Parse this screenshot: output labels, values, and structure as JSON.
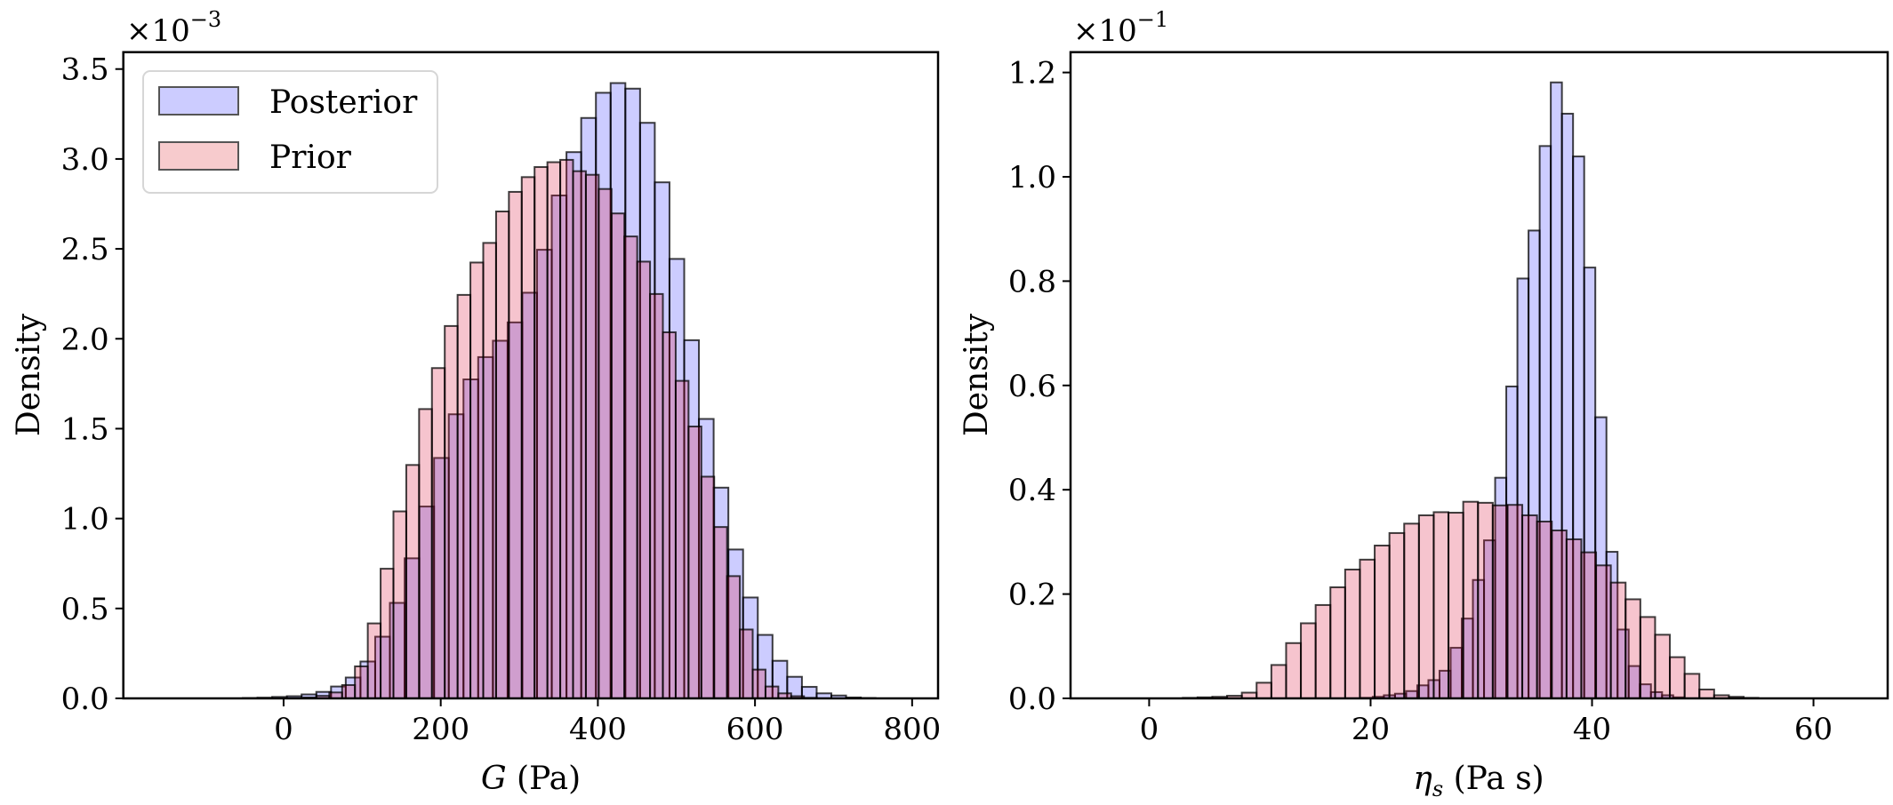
{
  "chart_data": [
    {
      "type": "bar",
      "subtype": "histogram",
      "xlabel": "G (Pa)",
      "xlabel_italic": "G",
      "xlabel_rest": " (Pa)",
      "ylabel": "Density",
      "y_offset_text": "×10",
      "y_offset_exp": "−3",
      "xlim": [
        -204,
        833
      ],
      "ylim": [
        0,
        3.594
      ],
      "y_scale_factor": 0.001,
      "xticks": [
        "0",
        "200",
        "400",
        "600",
        "800"
      ],
      "xtick_values": [
        0,
        200,
        400,
        600,
        800
      ],
      "yticks": [
        "0.0",
        "0.5",
        "1.0",
        "1.5",
        "2.0",
        "2.5",
        "3.0",
        "3.5"
      ],
      "ytick_values": [
        0,
        0.5,
        1.0,
        1.5,
        2.0,
        2.5,
        3.0,
        3.5
      ],
      "grid": false,
      "legend": {
        "placement": "top-left",
        "entries": [
          "Posterior",
          "Prior"
        ]
      },
      "series": [
        {
          "name": "Posterior",
          "color": "#ccccff",
          "bin_start": -52,
          "bin_width": 18.73,
          "values": [
            0.002,
            0.004,
            0.008,
            0.012,
            0.022,
            0.036,
            0.066,
            0.116,
            0.205,
            0.343,
            0.531,
            0.779,
            1.067,
            1.337,
            1.58,
            1.774,
            1.898,
            1.989,
            2.091,
            2.256,
            2.495,
            2.797,
            3.038,
            3.228,
            3.368,
            3.422,
            3.391,
            3.201,
            2.87,
            2.444,
            1.992,
            1.554,
            1.172,
            0.828,
            0.561,
            0.353,
            0.209,
            0.12,
            0.064,
            0.028,
            0.016,
            0.005,
            0.002
          ]
        },
        {
          "name": "Prior",
          "color": "#f7cbcd",
          "bin_start": 25.5,
          "bin_width": 16.33,
          "values": [
            0.005,
            0.014,
            0.033,
            0.074,
            0.178,
            0.417,
            0.721,
            1.04,
            1.298,
            1.609,
            1.837,
            2.071,
            2.244,
            2.424,
            2.533,
            2.708,
            2.817,
            2.899,
            2.955,
            2.982,
            2.995,
            2.932,
            2.912,
            2.833,
            2.697,
            2.569,
            2.429,
            2.249,
            2.036,
            1.766,
            1.512,
            1.233,
            0.953,
            0.68,
            0.383,
            0.16,
            0.066,
            0.028,
            0.012,
            0.003
          ]
        }
      ]
    },
    {
      "type": "bar",
      "subtype": "histogram",
      "xlabel": "ηs (Pa s)",
      "xlabel_italic": "η",
      "xlabel_sub": "s",
      "xlabel_rest": " (Pa s)",
      "ylabel": "Density",
      "y_offset_text": "×10",
      "y_offset_exp": "−1",
      "xlim": [
        -7.1,
        66.7
      ],
      "ylim": [
        0,
        1.239
      ],
      "y_scale_factor": 0.1,
      "xticks": [
        "0",
        "20",
        "40",
        "60"
      ],
      "xtick_values": [
        0,
        20,
        40,
        60
      ],
      "yticks": [
        "0.0",
        "0.2",
        "0.4",
        "0.6",
        "0.8",
        "1.0",
        "1.2"
      ],
      "ytick_values": [
        0,
        0.2,
        0.4,
        0.6,
        0.8,
        1.0,
        1.2
      ],
      "grid": false,
      "series": [
        {
          "name": "Posterior",
          "color": "#ccccff",
          "bin_start": 19.19,
          "bin_width": 1.005,
          "values": [
            0.001,
            0.003,
            0.006,
            0.009,
            0.014,
            0.025,
            0.035,
            0.053,
            0.097,
            0.153,
            0.227,
            0.303,
            0.423,
            0.598,
            0.805,
            0.897,
            1.059,
            1.181,
            1.121,
            1.039,
            0.826,
            0.539,
            0.281,
            0.132,
            0.062,
            0.027,
            0.012,
            0.006,
            0.002
          ]
        },
        {
          "name": "Prior",
          "color": "#f7cbcd",
          "bin_start": 3.04,
          "bin_width": 1.333,
          "values": [
            0.001,
            0.002,
            0.003,
            0.005,
            0.011,
            0.03,
            0.064,
            0.106,
            0.144,
            0.179,
            0.213,
            0.247,
            0.266,
            0.293,
            0.317,
            0.335,
            0.351,
            0.357,
            0.356,
            0.377,
            0.375,
            0.37,
            0.371,
            0.351,
            0.339,
            0.322,
            0.305,
            0.28,
            0.255,
            0.222,
            0.19,
            0.156,
            0.122,
            0.079,
            0.047,
            0.017,
            0.006,
            0.003,
            0.001
          ]
        }
      ]
    }
  ]
}
